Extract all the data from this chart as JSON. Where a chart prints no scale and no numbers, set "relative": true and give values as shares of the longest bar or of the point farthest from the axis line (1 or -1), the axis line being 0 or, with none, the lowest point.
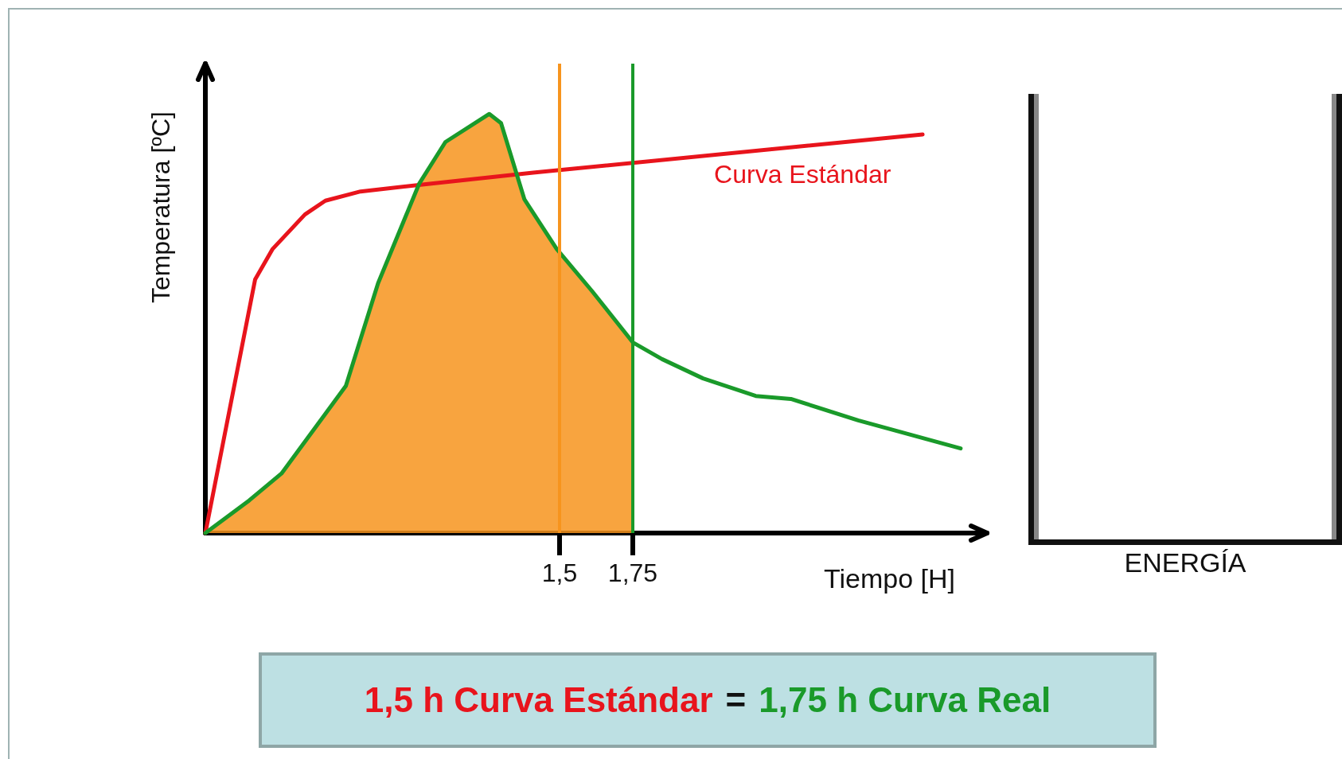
{
  "chart_data": {
    "type": "line",
    "ylabel": "Temperatura [ºC]",
    "xlabel": "Tiempo [H]",
    "relative": true,
    "xlim": [
      0.29,
      2.96
    ],
    "xticks": [
      {
        "value": 1.5,
        "label": "1,5"
      },
      {
        "value": 1.75,
        "label": "1,75"
      }
    ],
    "grid": false,
    "legend": false,
    "marker": "none",
    "line_style": "solid",
    "series": [
      {
        "type": "area",
        "color": "#f7941d",
        "x": [
          0.29,
          0.44,
          0.55,
          0.77,
          0.88,
          1.02,
          1.11,
          1.26,
          1.3,
          1.38,
          1.49,
          1.61,
          1.75
        ],
        "values": [
          0,
          0.078,
          0.142,
          0.351,
          0.596,
          0.833,
          0.933,
          1,
          0.978,
          0.796,
          0.678,
          0.578,
          0.455
        ]
      },
      {
        "name": "Curva Estándar",
        "color": "#e8141c",
        "x": [
          0.29,
          0.46,
          0.52,
          0.63,
          0.7,
          0.82,
          1.05,
          1.41,
          2.74
        ],
        "values": [
          0,
          0.605,
          0.678,
          0.76,
          0.793,
          0.815,
          0.833,
          0.86,
          0.951
        ]
      },
      {
        "color": "#1a9a2a",
        "x": [
          0.29,
          0.44,
          0.55,
          0.77,
          0.88,
          1.02,
          1.11,
          1.26,
          1.3,
          1.38,
          1.49,
          1.61,
          1.75,
          1.85,
          1.99,
          2.17,
          2.29,
          2.52,
          2.87
        ],
        "values": [
          0,
          0.078,
          0.142,
          0.351,
          0.596,
          0.833,
          0.933,
          1,
          0.978,
          0.796,
          0.678,
          0.578,
          0.455,
          0.415,
          0.369,
          0.327,
          0.32,
          0.269,
          0.202
        ]
      }
    ],
    "ref_lines": [
      {
        "axis": "x",
        "value": 1.5,
        "color": "#f7941d"
      },
      {
        "axis": "x",
        "value": 1.75,
        "color": "#1a9a2a"
      }
    ],
    "annotations": [
      "ENERGÍA",
      "1,5 h Curva Estándar",
      "=",
      "1,75 h Curva Real"
    ]
  }
}
